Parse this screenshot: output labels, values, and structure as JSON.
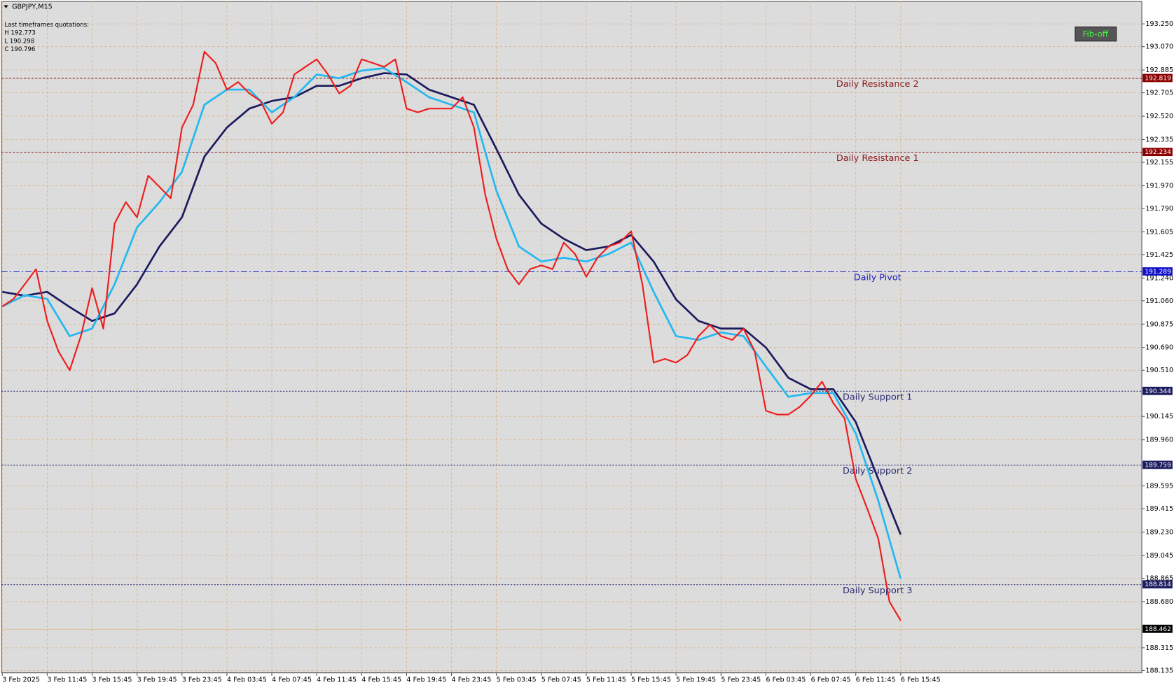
{
  "chart_data": {
    "type": "line",
    "title": "GBPJPY,M15",
    "info": [
      "Last timeframes quotations:",
      "H 192.773",
      "L 190.298",
      "C 190.796"
    ],
    "button": "Fib-off",
    "xlim": [
      -0.07,
      101.47
    ],
    "ylim": [
      188.117,
      193.427
    ],
    "grid": true,
    "xticks": [
      {
        "value": 0,
        "label": "3 Feb 2025"
      },
      {
        "value": 4,
        "label": "3 Feb 11:45"
      },
      {
        "value": 8,
        "label": "3 Feb 15:45"
      },
      {
        "value": 12,
        "label": "3 Feb 19:45"
      },
      {
        "value": 16,
        "label": "3 Feb 23:45"
      },
      {
        "value": 20,
        "label": "4 Feb 03:45"
      },
      {
        "value": 24,
        "label": "4 Feb 07:45"
      },
      {
        "value": 28,
        "label": "4 Feb 11:45"
      },
      {
        "value": 32,
        "label": "4 Feb 15:45"
      },
      {
        "value": 36,
        "label": "4 Feb 19:45"
      },
      {
        "value": 40,
        "label": "4 Feb 23:45"
      },
      {
        "value": 44,
        "label": "5 Feb 03:45"
      },
      {
        "value": 48,
        "label": "5 Feb 07:45"
      },
      {
        "value": 52,
        "label": "5 Feb 11:45"
      },
      {
        "value": 56,
        "label": "5 Feb 15:45"
      },
      {
        "value": 60,
        "label": "5 Feb 19:45"
      },
      {
        "value": 64,
        "label": "5 Feb 23:45"
      },
      {
        "value": 68,
        "label": "6 Feb 03:45"
      },
      {
        "value": 72,
        "label": "6 Feb 07:45"
      },
      {
        "value": 76,
        "label": "6 Feb 11:45"
      },
      {
        "value": 80,
        "label": "6 Feb 15:45"
      }
    ],
    "yticks": [
      {
        "value": 193.25,
        "label": "193.250"
      },
      {
        "value": 193.07,
        "label": "193.070"
      },
      {
        "value": 192.885,
        "label": "192.885"
      },
      {
        "value": 192.705,
        "label": "192.705"
      },
      {
        "value": 192.52,
        "label": "192.520"
      },
      {
        "value": 192.335,
        "label": "192.335"
      },
      {
        "value": 192.155,
        "label": "192.155"
      },
      {
        "value": 191.97,
        "label": "191.970"
      },
      {
        "value": 191.79,
        "label": "191.790"
      },
      {
        "value": 191.605,
        "label": "191.605"
      },
      {
        "value": 191.425,
        "label": "191.425"
      },
      {
        "value": 191.24,
        "label": "191.240"
      },
      {
        "value": 191.06,
        "label": "191.060"
      },
      {
        "value": 190.875,
        "label": "190.875"
      },
      {
        "value": 190.69,
        "label": "190.690"
      },
      {
        "value": 190.51,
        "label": "190.510"
      },
      {
        "value": 190.145,
        "label": "190.145"
      },
      {
        "value": 189.96,
        "label": "189.960"
      },
      {
        "value": 189.595,
        "label": "189.595"
      },
      {
        "value": 189.415,
        "label": "189.415"
      },
      {
        "value": 189.23,
        "label": "189.230"
      },
      {
        "value": 189.045,
        "label": "189.045"
      },
      {
        "value": 188.865,
        "label": "188.865"
      },
      {
        "value": 188.68,
        "label": "188.680"
      },
      {
        "value": 188.315,
        "label": "188.315"
      },
      {
        "value": 188.135,
        "label": "188.135"
      }
    ],
    "levels": [
      {
        "name": "Daily Resistance 2",
        "value": 192.819,
        "color": "#8b1a1a",
        "box": "#8b0000",
        "dash": "3,2"
      },
      {
        "name": "Daily Resistance 1",
        "value": 192.234,
        "color": "#8b1a1a",
        "box": "#8b0000",
        "dash": "3,2"
      },
      {
        "name": "Daily Pivot",
        "value": 191.289,
        "color": "#2020c0",
        "box": "#1010c8",
        "dash": "8,3,2,3"
      },
      {
        "name": "Daily Support 1",
        "value": 190.344,
        "color": "#2a2a70",
        "box": "#1c1c60",
        "dash": "2,2"
      },
      {
        "name": "Daily Support 2",
        "value": 189.759,
        "color": "#2a2a70",
        "box": "#1c1c60",
        "dash": "2,2"
      },
      {
        "name": "Daily Support 3",
        "value": 188.814,
        "color": "#2a2a70",
        "box": "#1c1c60",
        "dash": "2,2"
      },
      {
        "value": 188.462,
        "color": "#d8b890",
        "box": "#000000",
        "dash": ""
      }
    ],
    "series": [
      {
        "color": "#1a1a5e",
        "width": 2.5,
        "x": [
          0,
          2,
          4,
          6,
          8,
          10,
          12,
          14,
          16,
          18,
          20,
          22,
          24,
          26,
          28,
          30,
          32,
          34,
          36,
          38,
          40,
          42,
          44,
          46,
          48,
          50,
          52,
          54,
          56,
          58,
          60,
          62,
          64,
          66,
          68,
          70,
          72,
          74,
          76,
          78,
          80
        ],
        "values": [
          191.13,
          191.1,
          191.13,
          191.01,
          190.9,
          190.96,
          191.19,
          191.49,
          191.72,
          192.2,
          192.43,
          192.58,
          192.64,
          192.67,
          192.76,
          192.76,
          192.82,
          192.86,
          192.85,
          192.73,
          192.67,
          192.61,
          192.26,
          191.9,
          191.67,
          191.55,
          191.46,
          191.49,
          191.58,
          191.37,
          191.07,
          190.9,
          190.84,
          190.84,
          190.69,
          190.45,
          190.36,
          190.36,
          190.1,
          189.65,
          189.21
        ]
      },
      {
        "color": "#22b8f0",
        "width": 2.5,
        "x": [
          0,
          2,
          4,
          6,
          8,
          10,
          12,
          14,
          16,
          18,
          20,
          22,
          24,
          26,
          28,
          30,
          32,
          34,
          36,
          38,
          40,
          42,
          44,
          46,
          48,
          50,
          52,
          54,
          56,
          58,
          60,
          62,
          64,
          66,
          68,
          70,
          72,
          74,
          76,
          78,
          80
        ],
        "values": [
          191.015,
          191.104,
          191.074,
          190.78,
          190.84,
          191.19,
          191.64,
          191.84,
          192.08,
          192.61,
          192.73,
          192.73,
          192.55,
          192.67,
          192.85,
          192.82,
          192.88,
          192.9,
          192.79,
          192.67,
          192.61,
          192.55,
          191.93,
          191.49,
          191.37,
          191.4,
          191.37,
          191.43,
          191.52,
          191.13,
          190.78,
          190.75,
          190.81,
          190.78,
          190.54,
          190.3,
          190.33,
          190.33,
          190.01,
          189.48,
          188.86
        ]
      },
      {
        "color": "#ee1c1c",
        "width": 2,
        "x": [
          0,
          1,
          2,
          3,
          4,
          5,
          6,
          7,
          8,
          9,
          10,
          11,
          12,
          13,
          14,
          15,
          16,
          17,
          18,
          19,
          20,
          21,
          22,
          23,
          24,
          25,
          26,
          27,
          28,
          29,
          30,
          31,
          32,
          33,
          34,
          35,
          36,
          37,
          38,
          39,
          40,
          41,
          42,
          43,
          44,
          45,
          46,
          47,
          48,
          49,
          50,
          51,
          52,
          53,
          54,
          55,
          56,
          57,
          58,
          59,
          60,
          61,
          62,
          63,
          64,
          65,
          66,
          67,
          68,
          69,
          70,
          71,
          72,
          73,
          74,
          75,
          76,
          77,
          78,
          79,
          80
        ],
        "values": [
          191.015,
          191.074,
          191.19,
          191.31,
          190.9,
          190.66,
          190.51,
          190.78,
          191.16,
          190.84,
          191.67,
          191.84,
          191.72,
          192.05,
          191.96,
          191.87,
          192.43,
          192.61,
          193.03,
          192.94,
          192.73,
          192.79,
          192.7,
          192.64,
          192.46,
          192.55,
          192.85,
          192.91,
          192.97,
          192.85,
          192.7,
          192.76,
          192.97,
          192.94,
          192.91,
          192.97,
          192.58,
          192.55,
          192.58,
          192.58,
          192.58,
          192.67,
          192.43,
          191.9,
          191.55,
          191.31,
          191.19,
          191.31,
          191.34,
          191.31,
          191.52,
          191.43,
          191.25,
          191.4,
          191.49,
          191.52,
          191.61,
          191.19,
          190.57,
          190.6,
          190.57,
          190.63,
          190.78,
          190.87,
          190.78,
          190.75,
          190.84,
          190.66,
          190.19,
          190.16,
          190.16,
          190.22,
          190.31,
          190.42,
          190.25,
          190.13,
          189.65,
          189.42,
          189.18,
          188.68,
          188.53
        ]
      }
    ]
  }
}
